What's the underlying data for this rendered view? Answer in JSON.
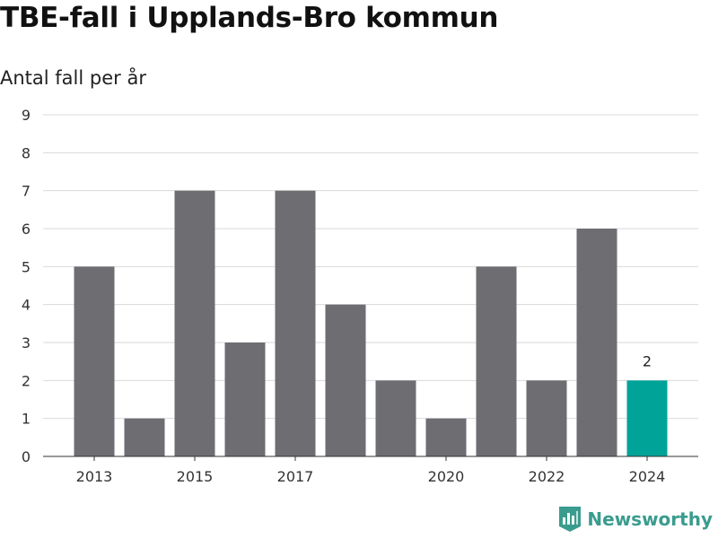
{
  "title": "TBE-fall i Upplands-Bro kommun",
  "subtitle": "Antal fall per år",
  "brand": {
    "name": "Newsworthy",
    "icon": "newsworthy-logo-icon",
    "color": "#3a9c8e"
  },
  "colors": {
    "bar": "#6e6d72",
    "highlight": "#00a398",
    "grid": "#d9d9d9"
  },
  "chart_data": {
    "type": "bar",
    "categories": [
      "2013",
      "2014",
      "2015",
      "2016",
      "2017",
      "2018",
      "2019",
      "2020",
      "2021",
      "2022",
      "2023",
      "2024"
    ],
    "values": [
      5,
      1,
      7,
      3,
      7,
      4,
      2,
      1,
      5,
      2,
      6,
      2
    ],
    "xticks": [
      "2013",
      "2015",
      "2017",
      "2020",
      "2022",
      "2024"
    ],
    "ylim": [
      0,
      9
    ],
    "yticks": [
      "0",
      "1",
      "2",
      "3",
      "4",
      "5",
      "6",
      "7",
      "8",
      "9"
    ],
    "highlight": {
      "category": "2024",
      "label": "2"
    },
    "grid": true
  }
}
